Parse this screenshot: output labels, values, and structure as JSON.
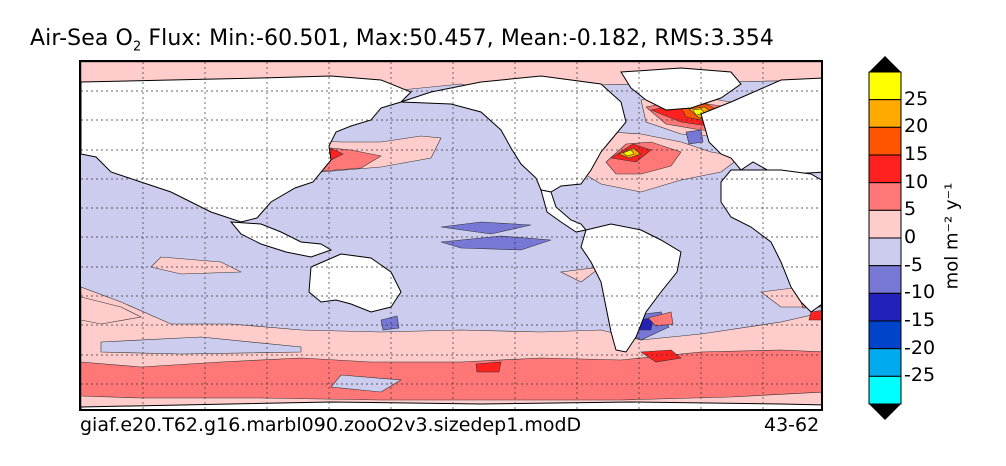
{
  "title": {
    "prefix": "Air-Sea O",
    "subscript": "2",
    "suffix": " Flux: Min:-60.501, Max:50.457, Mean:-0.182, RMS:3.354"
  },
  "footer": {
    "case_name": "giaf.e20.T62.g16.marbl090.zooO2v3.sizedep1.modD",
    "years": "43-62"
  },
  "colorbar": {
    "unit_label": "mol m⁻² y⁻¹",
    "bins": [
      {
        "label": "25",
        "color": "#ffff00"
      },
      {
        "label": "20",
        "color": "#ffaa00"
      },
      {
        "label": "15",
        "color": "#ff5500"
      },
      {
        "label": "10",
        "color": "#ff2020"
      },
      {
        "label": "5",
        "color": "#ff7777"
      },
      {
        "label": "0",
        "color": "#ffcccc"
      },
      {
        "label": "-5",
        "color": "#ccccee"
      },
      {
        "label": "-10",
        "color": "#7777d6"
      },
      {
        "label": "-15",
        "color": "#2222bb"
      },
      {
        "label": "-20",
        "color": "#0044cc"
      },
      {
        "label": "-25",
        "color": "#00aaee"
      },
      {
        "label": "",
        "color": "#00ffff"
      }
    ],
    "extend_top_color": "#000000",
    "extend_bottom_color": "#000000"
  },
  "map": {
    "background_color": "#ccccee",
    "land_color": "#ffffff",
    "gridlines": "dashed"
  }
}
